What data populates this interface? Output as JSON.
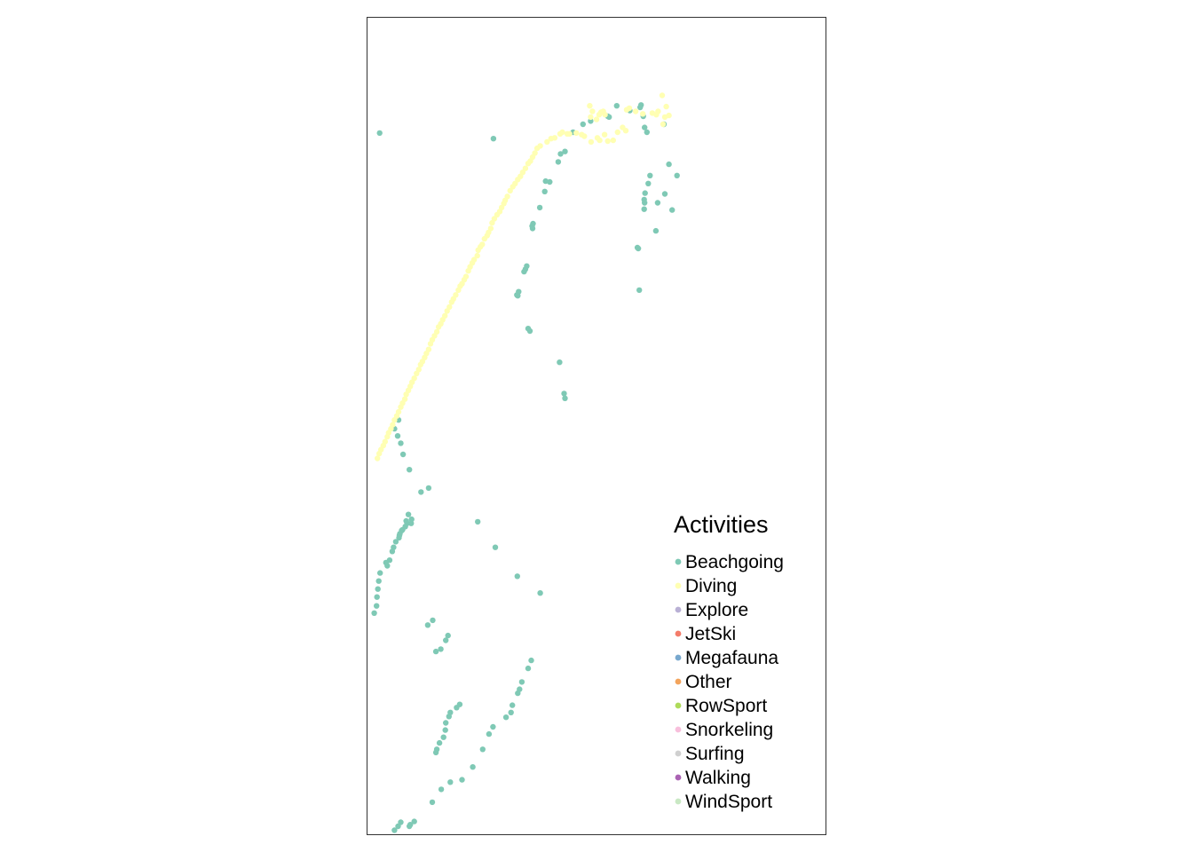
{
  "chart_data": {
    "type": "scatter",
    "title": "",
    "xlabel": "",
    "ylabel": "",
    "grid": false,
    "legend": {
      "title": "Activities",
      "placement": "bottom-right (inside panel)"
    },
    "series": [
      {
        "name": "Beachgoing",
        "color": "#7FC9B5",
        "points": [
          [
            26.2,
            84.8
          ],
          [
            42.1,
            52.4
          ],
          [
            41.9,
            53.0
          ],
          [
            31.4,
            65.3
          ],
          [
            31.8,
            65.7
          ],
          [
            31.6,
            65.2
          ],
          [
            33.0,
            68.2
          ],
          [
            33.3,
            68.5
          ],
          [
            33.6,
            68.9
          ],
          [
            34.8,
            73.9
          ],
          [
            35.0,
            74.2
          ],
          [
            34.9,
            73.6
          ],
          [
            36.5,
            76.2
          ],
          [
            37.6,
            78.2
          ],
          [
            38.7,
            79.4
          ],
          [
            37.8,
            79.5
          ],
          [
            40.6,
            81.9
          ],
          [
            41.1,
            82.9
          ],
          [
            42.1,
            83.2
          ],
          [
            43.9,
            85.6
          ],
          [
            46.1,
            86.6
          ],
          [
            47.8,
            87.0
          ],
          [
            51.6,
            87.6
          ],
          [
            51.9,
            87.5
          ],
          [
            53.6,
            88.9
          ],
          [
            56.5,
            88.3
          ],
          [
            59.0,
            89.0
          ],
          [
            58.8,
            88.7
          ],
          [
            59.5,
            87.6
          ],
          [
            59.8,
            86.2
          ],
          [
            60.3,
            85.6
          ],
          [
            64.1,
            86.6
          ],
          [
            61.0,
            80.2
          ],
          [
            60.6,
            79.2
          ],
          [
            59.9,
            78.0
          ],
          [
            59.7,
            77.2
          ],
          [
            59.8,
            76.8
          ],
          [
            59.7,
            76.0
          ],
          [
            62.7,
            76.8
          ],
          [
            64.3,
            77.9
          ],
          [
            65.2,
            81.6
          ],
          [
            67.0,
            80.2
          ],
          [
            65.9,
            75.9
          ],
          [
            58.2,
            71.2
          ],
          [
            58.4,
            71.1
          ],
          [
            62.3,
            73.3
          ],
          [
            58.6,
            65.9
          ],
          [
            40.9,
            56.9
          ],
          [
            33.9,
            61.1
          ],
          [
            34.3,
            60.8
          ],
          [
            12.6,
            2.0
          ],
          [
            14.6,
            3.6
          ],
          [
            16.6,
            4.5
          ],
          [
            19.2,
            4.8
          ],
          [
            21.6,
            6.4
          ],
          [
            23.8,
            8.6
          ],
          [
            25.2,
            10.5
          ],
          [
            26.1,
            11.4
          ],
          [
            29.0,
            12.6
          ],
          [
            30.1,
            13.2
          ],
          [
            30.4,
            14.1
          ],
          [
            31.6,
            15.6
          ],
          [
            32.0,
            16.1
          ],
          [
            32.5,
            17.0
          ],
          [
            33.9,
            18.7
          ],
          [
            34.6,
            19.7
          ],
          [
            13.4,
            20.8
          ],
          [
            14.5,
            21.1
          ],
          [
            15.6,
            22.2
          ],
          [
            16.1,
            22.8
          ],
          [
            11.6,
            24.1
          ],
          [
            12.7,
            24.7
          ],
          [
            36.6,
            28.1
          ],
          [
            31.5,
            30.2
          ],
          [
            26.6,
            33.8
          ],
          [
            22.7,
            37.0
          ],
          [
            11.8,
            41.2
          ],
          [
            10.1,
            40.7
          ],
          [
            7.5,
            43.5
          ],
          [
            6.1,
            45.4
          ],
          [
            5.6,
            46.8
          ],
          [
            4.9,
            47.7
          ],
          [
            4.2,
            48.6
          ],
          [
            5.1,
            49.7
          ],
          [
            0.9,
            85.5
          ],
          [
            7.3,
            37.9
          ],
          [
            8.0,
            37.3
          ],
          [
            7.9,
            36.8
          ],
          [
            7.0,
            36.8
          ],
          [
            6.8,
            37.1
          ],
          [
            5.8,
            35.9
          ],
          [
            5.4,
            35.5
          ],
          [
            6.6,
            36.4
          ],
          [
            6.0,
            36.0
          ],
          [
            5.3,
            35.3
          ],
          [
            5.2,
            35.0
          ],
          [
            4.5,
            34.5
          ],
          [
            4.0,
            33.8
          ],
          [
            3.7,
            33.3
          ],
          [
            3.1,
            32.2
          ],
          [
            2.3,
            31.9
          ],
          [
            2.6,
            31.5
          ],
          [
            1.0,
            30.6
          ],
          [
            0.7,
            29.6
          ],
          [
            0.5,
            28.6
          ],
          [
            0.3,
            27.6
          ],
          [
            0.2,
            26.5
          ],
          [
            -0.3,
            25.6
          ],
          [
            13.4,
            8.2
          ],
          [
            13.6,
            8.6
          ],
          [
            14.2,
            9.4
          ],
          [
            15.1,
            10.1
          ],
          [
            15.5,
            11.0
          ],
          [
            15.6,
            11.9
          ],
          [
            16.3,
            12.7
          ],
          [
            16.6,
            13.2
          ],
          [
            18.0,
            13.8
          ],
          [
            18.7,
            14.2
          ],
          [
            4.2,
            -1.5
          ],
          [
            5.0,
            -1.0
          ],
          [
            7.7,
            -0.8
          ],
          [
            8.6,
            -0.4
          ],
          [
            7.5,
            -1.0
          ],
          [
            5.6,
            -0.5
          ]
        ]
      },
      {
        "name": "Diving",
        "color": "#FFFFB3",
        "points": [
          [
            47.8,
            87.5
          ],
          [
            47.6,
            88.9
          ],
          [
            48.2,
            88.2
          ],
          [
            49.1,
            87.2
          ],
          [
            50.1,
            88.1
          ],
          [
            51.0,
            87.8
          ],
          [
            50.6,
            88.2
          ],
          [
            49.7,
            87.8
          ],
          [
            63.7,
            90.2
          ],
          [
            64.6,
            88.8
          ],
          [
            64.3,
            87.5
          ],
          [
            63.9,
            86.6
          ],
          [
            62.8,
            88.2
          ],
          [
            62.4,
            87.8
          ],
          [
            65.2,
            87.7
          ],
          [
            61.5,
            88.0
          ],
          [
            59.4,
            87.9
          ],
          [
            57.8,
            88.2
          ],
          [
            56.4,
            88.6
          ],
          [
            55.8,
            88.4
          ],
          [
            55.6,
            85.8
          ],
          [
            54.9,
            86.2
          ],
          [
            53.8,
            85.6
          ],
          [
            52.8,
            84.6
          ],
          [
            51.6,
            84.5
          ],
          [
            50.9,
            85.3
          ],
          [
            49.8,
            84.6
          ],
          [
            49.3,
            84.9
          ],
          [
            47.9,
            84.4
          ],
          [
            46.4,
            85.1
          ],
          [
            45.8,
            85.3
          ],
          [
            44.6,
            85.5
          ],
          [
            43.1,
            85.4
          ],
          [
            42.6,
            85.4
          ],
          [
            41.5,
            85.6
          ],
          [
            41.0,
            85.4
          ],
          [
            39.8,
            84.9
          ],
          [
            39.0,
            84.8
          ],
          [
            38.1,
            84.4
          ],
          [
            36.6,
            83.9
          ],
          [
            35.9,
            83.6
          ],
          [
            35.4,
            83.0
          ],
          [
            34.9,
            82.5
          ],
          [
            34.4,
            82.0
          ],
          [
            33.9,
            81.7
          ],
          [
            33.3,
            81.1
          ],
          [
            32.7,
            80.6
          ],
          [
            32.2,
            80.1
          ],
          [
            31.6,
            79.7
          ],
          [
            31.0,
            79.2
          ],
          [
            30.5,
            78.8
          ],
          [
            29.9,
            78.3
          ],
          [
            29.3,
            77.6
          ],
          [
            28.8,
            77.1
          ],
          [
            28.5,
            76.7
          ],
          [
            28.0,
            76.2
          ],
          [
            27.6,
            75.7
          ],
          [
            27.0,
            75.3
          ],
          [
            26.4,
            74.8
          ],
          [
            25.9,
            74.3
          ],
          [
            25.6,
            73.6
          ],
          [
            25.1,
            73.1
          ],
          [
            24.8,
            72.7
          ],
          [
            24.2,
            72.3
          ],
          [
            23.7,
            71.6
          ],
          [
            23.3,
            71.3
          ],
          [
            22.8,
            70.9
          ],
          [
            22.6,
            70.2
          ],
          [
            21.9,
            69.7
          ],
          [
            21.5,
            69.3
          ],
          [
            21.0,
            68.8
          ],
          [
            20.6,
            68.3
          ],
          [
            20.1,
            67.6
          ],
          [
            19.7,
            67.2
          ],
          [
            19.2,
            66.7
          ],
          [
            18.8,
            66.4
          ],
          [
            18.4,
            65.9
          ],
          [
            17.8,
            65.3
          ],
          [
            17.3,
            64.8
          ],
          [
            16.9,
            64.4
          ],
          [
            16.4,
            63.8
          ],
          [
            15.9,
            63.3
          ],
          [
            15.4,
            62.7
          ],
          [
            14.9,
            62.2
          ],
          [
            14.5,
            61.7
          ],
          [
            14.0,
            61.3
          ],
          [
            13.6,
            60.7
          ],
          [
            13.1,
            60.2
          ],
          [
            12.6,
            59.7
          ],
          [
            12.2,
            59.2
          ],
          [
            11.8,
            58.5
          ],
          [
            11.3,
            58.0
          ],
          [
            10.9,
            57.5
          ],
          [
            10.4,
            57.0
          ],
          [
            10.0,
            56.6
          ],
          [
            9.6,
            56.0
          ],
          [
            9.1,
            55.5
          ],
          [
            8.6,
            54.9
          ],
          [
            8.1,
            54.4
          ],
          [
            7.7,
            53.9
          ],
          [
            7.3,
            53.4
          ],
          [
            6.8,
            52.9
          ],
          [
            6.5,
            52.3
          ],
          [
            6.0,
            51.8
          ],
          [
            5.6,
            51.3
          ],
          [
            5.1,
            50.7
          ],
          [
            4.7,
            50.2
          ],
          [
            4.2,
            49.7
          ],
          [
            3.8,
            49.1
          ],
          [
            3.4,
            48.6
          ],
          [
            2.9,
            48.1
          ],
          [
            2.6,
            47.6
          ],
          [
            2.1,
            47.0
          ],
          [
            1.7,
            46.5
          ],
          [
            1.2,
            46.0
          ],
          [
            0.8,
            45.5
          ],
          [
            0.4,
            44.9
          ]
        ]
      }
    ]
  }
}
